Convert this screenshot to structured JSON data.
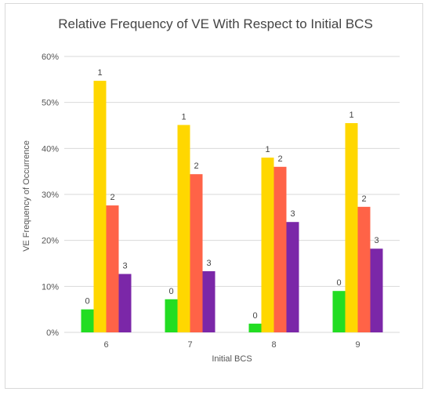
{
  "chart_data": {
    "type": "bar",
    "title": "Relative Frequency of VE With Respect to Initial BCS",
    "xlabel": "Initial BCS",
    "ylabel": "VE Frequency of Occurrence",
    "categories": [
      "6",
      "7",
      "8",
      "9"
    ],
    "yticks": [
      "0%",
      "10%",
      "20%",
      "30%",
      "40%",
      "50%",
      "60%"
    ],
    "ylim": [
      0,
      60
    ],
    "grid": true,
    "legend": "none",
    "series": [
      {
        "values": [
          5.0,
          7.2,
          1.9,
          9.0
        ],
        "color": "#22dd22",
        "label": "0"
      },
      {
        "values": [
          54.7,
          45.1,
          38.0,
          45.5
        ],
        "color": "#ffd700",
        "label": "1"
      },
      {
        "values": [
          27.6,
          34.4,
          36.0,
          27.3
        ],
        "color": "#ff6347",
        "label": "2"
      },
      {
        "values": [
          12.7,
          13.3,
          24.0,
          18.2
        ],
        "color": "#7b27a8",
        "label": "3"
      }
    ]
  }
}
